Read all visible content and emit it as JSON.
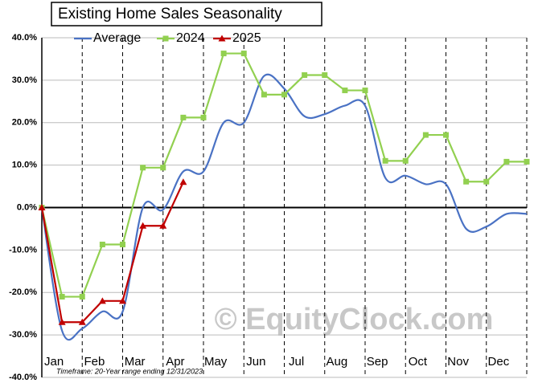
{
  "chart_data": {
    "type": "line",
    "title": "Existing Home Sales Seasonality",
    "categories": [
      null,
      "Jan",
      null,
      "Feb",
      null,
      "Mar",
      null,
      "Apr",
      null,
      "May",
      null,
      "Jun",
      null,
      "Jul",
      null,
      "Aug",
      null,
      "Sep",
      null,
      "Oct",
      null,
      "Nov",
      null,
      "Dec",
      null
    ],
    "series": [
      {
        "name": "Average",
        "color": "#4a72c4",
        "values": [
          0,
          -29,
          -28.5,
          -24.5,
          -24.5,
          0,
          -0.5,
          8.5,
          8.5,
          20,
          20,
          31,
          28,
          21.5,
          22,
          24,
          24,
          7,
          7.5,
          5.5,
          5.5,
          -5,
          -4.5,
          -1.5,
          -1.5
        ]
      },
      {
        "name": "2024",
        "color": "#92d050",
        "values": [
          0,
          -21,
          -21,
          -8.7,
          -8.7,
          9.4,
          9.4,
          21.2,
          21.2,
          36.3,
          36.3,
          26.6,
          26.6,
          31.2,
          31.2,
          27.6,
          27.6,
          11,
          11,
          17.1,
          17.1,
          6.1,
          6.1,
          10.8,
          10.8
        ]
      },
      {
        "name": "2025",
        "color": "#c00000",
        "values": [
          0,
          -27,
          -27,
          -22,
          -22,
          -4.3,
          -4.3,
          6,
          null,
          null,
          null,
          null,
          null,
          null,
          null,
          null,
          null,
          null,
          null,
          null,
          null,
          null,
          null,
          null,
          null
        ]
      }
    ],
    "ylim": [
      -40,
      40
    ],
    "yticks": [
      {
        "value": -40,
        "label": "-40.0%"
      },
      {
        "value": -30,
        "label": "-30.0%"
      },
      {
        "value": -20,
        "label": "-20.0%"
      },
      {
        "value": -10,
        "label": "-10.0%"
      },
      {
        "value": 0,
        "label": "0.0%"
      },
      {
        "value": 10,
        "label": "10.0%"
      },
      {
        "value": 20,
        "label": "20.0%"
      },
      {
        "value": 30,
        "label": "30.0%"
      },
      {
        "value": 40,
        "label": "40.0%"
      }
    ],
    "grid": true,
    "watermark": "© EquityClock.com",
    "footnote": "Timeframe: 20-Year range ending 12/31/2023"
  }
}
